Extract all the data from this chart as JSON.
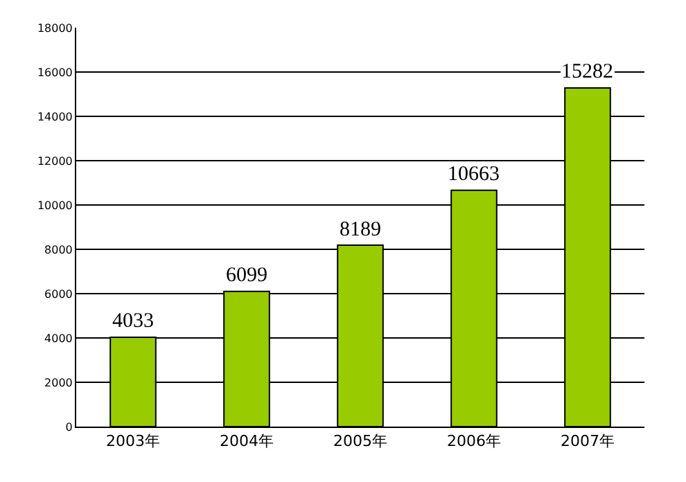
{
  "chart_data": {
    "type": "bar",
    "categories": [
      "2003年",
      "2004年",
      "2005年",
      "2006年",
      "2007年"
    ],
    "values": [
      4033,
      6099,
      8189,
      10663,
      15282
    ],
    "color": "#99cc00",
    "ylim": [
      0,
      18000
    ],
    "yticks": [
      0,
      2000,
      4000,
      6000,
      8000,
      10000,
      12000,
      14000,
      16000,
      18000
    ],
    "grid": "y",
    "data_labels": true,
    "legend": false
  }
}
